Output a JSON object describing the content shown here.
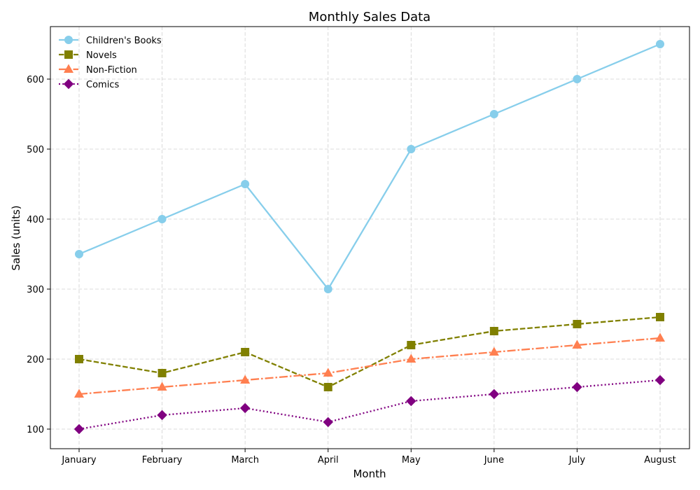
{
  "chart_data": {
    "type": "line",
    "title": "Monthly Sales Data",
    "xlabel": "Month",
    "ylabel": "Sales (units)",
    "categories": [
      "January",
      "February",
      "March",
      "April",
      "May",
      "June",
      "July",
      "August"
    ],
    "ylim": [
      72,
      675
    ],
    "yticks": [
      100,
      200,
      300,
      400,
      500,
      600
    ],
    "grid": true,
    "legend_position": "top-left",
    "series": [
      {
        "name": "Children's Books",
        "values": [
          350,
          400,
          450,
          300,
          500,
          550,
          600,
          650
        ],
        "color": "#87CEEB",
        "marker": "circle",
        "line_style": "solid"
      },
      {
        "name": "Novels",
        "values": [
          200,
          180,
          210,
          160,
          220,
          240,
          250,
          260
        ],
        "color": "#808000",
        "marker": "square",
        "line_style": "dashed"
      },
      {
        "name": "Non-Fiction",
        "values": [
          150,
          160,
          170,
          180,
          200,
          210,
          220,
          230
        ],
        "color": "#FF7F50",
        "marker": "triangle",
        "line_style": "dash-dot"
      },
      {
        "name": "Comics",
        "values": [
          100,
          120,
          130,
          110,
          140,
          150,
          160,
          170
        ],
        "color": "#800080",
        "marker": "diamond",
        "line_style": "dotted"
      }
    ]
  }
}
